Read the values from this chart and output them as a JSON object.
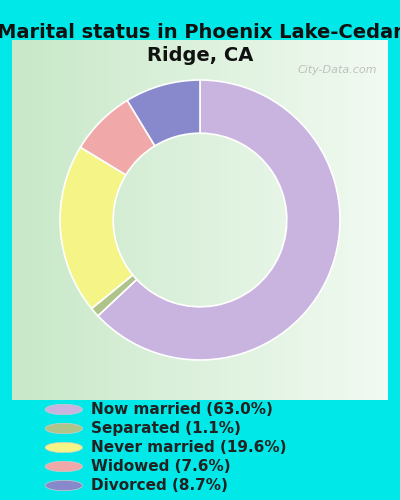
{
  "title": "Marital status in Phoenix Lake-Cedar\nRidge, CA",
  "slices": [
    63.0,
    1.1,
    19.6,
    7.6,
    8.7
  ],
  "labels": [
    "Now married (63.0%)",
    "Separated (1.1%)",
    "Never married (19.6%)",
    "Widowed (7.6%)",
    "Divorced (8.7%)"
  ],
  "colors": [
    "#c9b4e0",
    "#afc48a",
    "#f5f587",
    "#f0a8a8",
    "#8888cc"
  ],
  "bg_outer": "#00e8e8",
  "bg_chart_gradient_left": "#c8e8c8",
  "bg_chart_gradient_right": "#f0f8f0",
  "title_fontsize": 14,
  "legend_fontsize": 11,
  "watermark": "City-Data.com",
  "donut_width": 0.38,
  "start_angle": 90
}
